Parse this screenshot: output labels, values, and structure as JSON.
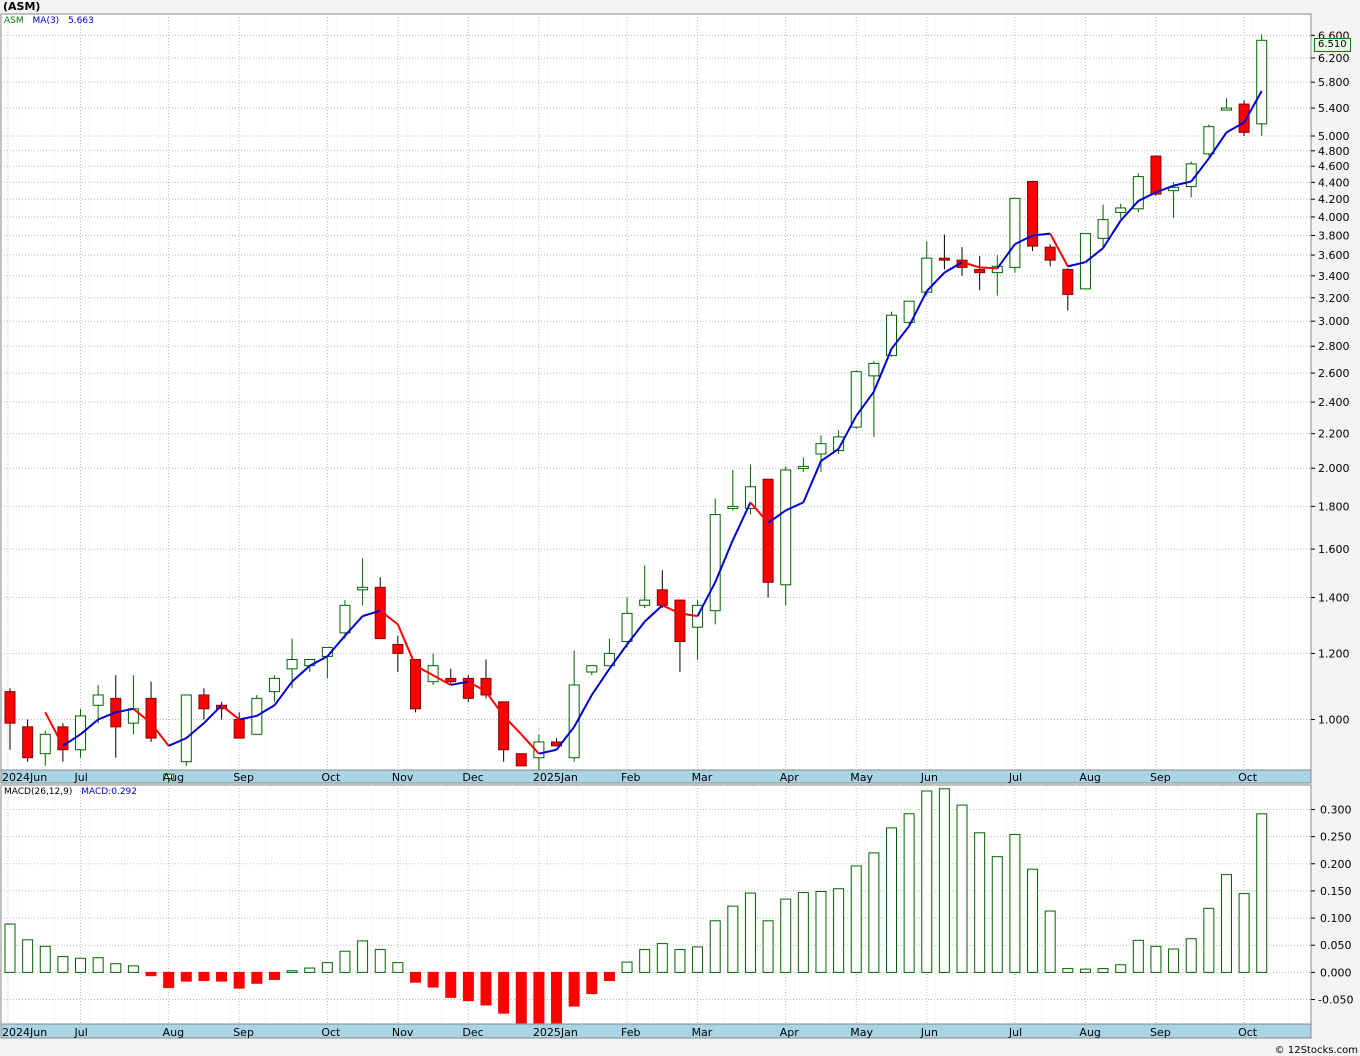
{
  "header": {
    "ticker": "(ASM)",
    "legend_symbol": "ASM",
    "legend_ma": "MA(3)",
    "legend_ma_value": "5.663",
    "macd_label": "MACD(26,12,9)",
    "macd_value": "MACD:0.292",
    "last_price": "6.510",
    "credit": "© 12Stocks.com"
  },
  "colors": {
    "up": "#006400",
    "down": "#ff0000",
    "ma_up": "#0000cc",
    "ma_down": "#ff0000",
    "macd_pos": "#006400",
    "macd_neg": "#ff0000",
    "axis_band": "#a8d4e6"
  },
  "chart_data": [
    {
      "type": "candlestick",
      "scale": "log",
      "ylim": [
        0.87,
        7.0
      ],
      "y_ticks": [
        "6.600",
        "6.200",
        "5.800",
        "5.400",
        "5.000",
        "4.800",
        "4.600",
        "4.400",
        "4.200",
        "4.000",
        "3.800",
        "3.600",
        "3.400",
        "3.200",
        "3.000",
        "2.800",
        "2.600",
        "2.400",
        "2.200",
        "2.000",
        "1.800",
        "1.600",
        "1.400",
        "1.200",
        "1.000"
      ],
      "x_month_labels": [
        "2024Jun",
        "Jul",
        "Aug",
        "Sep",
        "Oct",
        "Nov",
        "Dec",
        "2025Jan",
        "Feb",
        "Mar",
        "Apr",
        "May",
        "Jun",
        "Jul",
        "Aug",
        "Sep",
        "Oct"
      ],
      "candles": [
        {
          "o": 1.08,
          "h": 1.09,
          "l": 0.92,
          "c": 0.99
        },
        {
          "o": 0.98,
          "h": 1.0,
          "l": 0.89,
          "c": 0.9
        },
        {
          "o": 0.91,
          "h": 0.97,
          "l": 0.88,
          "c": 0.96
        },
        {
          "o": 0.98,
          "h": 0.99,
          "l": 0.89,
          "c": 0.92
        },
        {
          "o": 0.92,
          "h": 1.03,
          "l": 0.9,
          "c": 1.01
        },
        {
          "o": 1.04,
          "h": 1.1,
          "l": 0.99,
          "c": 1.07
        },
        {
          "o": 1.06,
          "h": 1.13,
          "l": 0.9,
          "c": 0.98
        },
        {
          "o": 0.99,
          "h": 1.13,
          "l": 0.96,
          "c": 1.03
        },
        {
          "o": 1.06,
          "h": 1.11,
          "l": 0.94,
          "c": 0.95
        },
        {
          "o": 0.85,
          "h": 0.86,
          "l": 0.84,
          "c": 0.86
        },
        {
          "o": 0.89,
          "h": 1.07,
          "l": 0.88,
          "c": 1.07
        },
        {
          "o": 1.07,
          "h": 1.09,
          "l": 1.0,
          "c": 1.03
        },
        {
          "o": 1.04,
          "h": 1.05,
          "l": 1.0,
          "c": 1.03
        },
        {
          "o": 1.0,
          "h": 1.02,
          "l": 0.95,
          "c": 0.95
        },
        {
          "o": 0.96,
          "h": 1.07,
          "l": 0.96,
          "c": 1.06
        },
        {
          "o": 1.08,
          "h": 1.13,
          "l": 1.05,
          "c": 1.12
        },
        {
          "o": 1.15,
          "h": 1.25,
          "l": 1.09,
          "c": 1.18
        },
        {
          "o": 1.16,
          "h": 1.18,
          "l": 1.14,
          "c": 1.18
        },
        {
          "o": 1.19,
          "h": 1.22,
          "l": 1.12,
          "c": 1.22
        },
        {
          "o": 1.27,
          "h": 1.39,
          "l": 1.25,
          "c": 1.37
        },
        {
          "o": 1.43,
          "h": 1.56,
          "l": 1.37,
          "c": 1.44
        },
        {
          "o": 1.44,
          "h": 1.48,
          "l": 1.25,
          "c": 1.25
        },
        {
          "o": 1.23,
          "h": 1.26,
          "l": 1.14,
          "c": 1.2
        },
        {
          "o": 1.18,
          "h": 1.18,
          "l": 1.02,
          "c": 1.03
        },
        {
          "o": 1.11,
          "h": 1.2,
          "l": 1.1,
          "c": 1.16
        },
        {
          "o": 1.12,
          "h": 1.15,
          "l": 1.1,
          "c": 1.11
        },
        {
          "o": 1.12,
          "h": 1.13,
          "l": 1.05,
          "c": 1.06
        },
        {
          "o": 1.12,
          "h": 1.18,
          "l": 1.06,
          "c": 1.07
        },
        {
          "o": 1.05,
          "h": 1.05,
          "l": 0.89,
          "c": 0.92
        },
        {
          "o": 0.91,
          "h": 0.91,
          "l": 0.88,
          "c": 0.88
        },
        {
          "o": 0.9,
          "h": 0.96,
          "l": 0.87,
          "c": 0.94
        },
        {
          "o": 0.94,
          "h": 0.95,
          "l": 0.94,
          "c": 0.93
        },
        {
          "o": 0.9,
          "h": 1.21,
          "l": 0.89,
          "c": 1.1
        },
        {
          "o": 1.14,
          "h": 1.16,
          "l": 1.13,
          "c": 1.16
        },
        {
          "o": 1.16,
          "h": 1.25,
          "l": 1.16,
          "c": 1.2
        },
        {
          "o": 1.24,
          "h": 1.4,
          "l": 1.22,
          "c": 1.34
        },
        {
          "o": 1.37,
          "h": 1.53,
          "l": 1.36,
          "c": 1.39
        },
        {
          "o": 1.43,
          "h": 1.51,
          "l": 1.36,
          "c": 1.37
        },
        {
          "o": 1.39,
          "h": 1.39,
          "l": 1.14,
          "c": 1.24
        },
        {
          "o": 1.29,
          "h": 1.39,
          "l": 1.18,
          "c": 1.37
        },
        {
          "o": 1.35,
          "h": 1.84,
          "l": 1.3,
          "c": 1.76
        },
        {
          "o": 1.79,
          "h": 1.99,
          "l": 1.78,
          "c": 1.8
        },
        {
          "o": 1.79,
          "h": 2.02,
          "l": 1.76,
          "c": 1.9
        },
        {
          "o": 1.94,
          "h": 1.94,
          "l": 1.4,
          "c": 1.46
        },
        {
          "o": 1.45,
          "h": 2.01,
          "l": 1.37,
          "c": 1.99
        },
        {
          "o": 2.01,
          "h": 2.06,
          "l": 1.98,
          "c": 2.01
        },
        {
          "o": 2.08,
          "h": 2.19,
          "l": 1.98,
          "c": 2.14
        },
        {
          "o": 2.1,
          "h": 2.22,
          "l": 2.08,
          "c": 2.18
        },
        {
          "o": 2.24,
          "h": 2.62,
          "l": 2.23,
          "c": 2.61
        },
        {
          "o": 2.58,
          "h": 2.69,
          "l": 2.18,
          "c": 2.67
        },
        {
          "o": 2.73,
          "h": 3.08,
          "l": 2.72,
          "c": 3.05
        },
        {
          "o": 2.99,
          "h": 3.17,
          "l": 2.98,
          "c": 3.17
        },
        {
          "o": 3.25,
          "h": 3.74,
          "l": 3.22,
          "c": 3.57
        },
        {
          "o": 3.57,
          "h": 3.81,
          "l": 3.46,
          "c": 3.55
        },
        {
          "o": 3.55,
          "h": 3.68,
          "l": 3.4,
          "c": 3.48
        },
        {
          "o": 3.46,
          "h": 3.59,
          "l": 3.27,
          "c": 3.43
        },
        {
          "o": 3.43,
          "h": 3.6,
          "l": 3.22,
          "c": 3.49
        },
        {
          "o": 3.48,
          "h": 4.2,
          "l": 3.43,
          "c": 4.21
        },
        {
          "o": 4.41,
          "h": 4.42,
          "l": 3.64,
          "c": 3.69
        },
        {
          "o": 3.68,
          "h": 3.71,
          "l": 3.49,
          "c": 3.55
        },
        {
          "o": 3.46,
          "h": 3.47,
          "l": 3.09,
          "c": 3.23
        },
        {
          "o": 3.28,
          "h": 3.82,
          "l": 3.28,
          "c": 3.82
        },
        {
          "o": 3.77,
          "h": 4.14,
          "l": 3.66,
          "c": 3.97
        },
        {
          "o": 4.05,
          "h": 4.15,
          "l": 3.98,
          "c": 4.1
        },
        {
          "o": 4.09,
          "h": 4.51,
          "l": 4.05,
          "c": 4.47
        },
        {
          "o": 4.73,
          "h": 4.74,
          "l": 4.24,
          "c": 4.26
        },
        {
          "o": 4.3,
          "h": 4.4,
          "l": 3.99,
          "c": 4.34
        },
        {
          "o": 4.35,
          "h": 4.66,
          "l": 4.22,
          "c": 4.63
        },
        {
          "o": 4.76,
          "h": 5.16,
          "l": 4.73,
          "c": 5.13
        },
        {
          "o": 5.4,
          "h": 5.55,
          "l": 5.38,
          "c": 5.4
        },
        {
          "o": 5.46,
          "h": 5.52,
          "l": 5.0,
          "c": 5.05
        },
        {
          "o": 5.17,
          "h": 6.62,
          "l": 5.0,
          "c": 6.51
        }
      ],
      "ma3": [
        null,
        null,
        1.02,
        0.93,
        0.96,
        1.0,
        1.02,
        1.03,
        0.99,
        0.93,
        0.95,
        0.99,
        1.04,
        1.0,
        1.01,
        1.04,
        1.11,
        1.16,
        1.19,
        1.26,
        1.33,
        1.35,
        1.3,
        1.16,
        1.13,
        1.1,
        1.11,
        1.08,
        1.01,
        0.96,
        0.91,
        0.92,
        0.98,
        1.07,
        1.15,
        1.23,
        1.31,
        1.37,
        1.34,
        1.33,
        1.46,
        1.64,
        1.82,
        1.72,
        1.78,
        1.82,
        2.04,
        2.11,
        2.31,
        2.47,
        2.78,
        2.96,
        3.26,
        3.43,
        3.53,
        3.48,
        3.47,
        3.71,
        3.8,
        3.82,
        3.49,
        3.53,
        3.67,
        3.96,
        4.18,
        4.28,
        4.36,
        4.41,
        4.7,
        5.05,
        5.19,
        5.66
      ]
    },
    {
      "type": "bar",
      "name": "MACD(26,12,9)",
      "ylim": [
        -0.095,
        0.345
      ],
      "y_ticks": [
        "0.300",
        "0.250",
        "0.200",
        "0.150",
        "0.100",
        "0.050",
        "0.000",
        "-0.050"
      ],
      "x_month_labels": [
        "2024Jun",
        "Jul",
        "Aug",
        "Sep",
        "Oct",
        "Nov",
        "Dec",
        "2025Jan",
        "Feb",
        "Mar",
        "Apr",
        "May",
        "Jun",
        "Jul",
        "Aug",
        "Sep",
        "Oct"
      ],
      "values": [
        0.089,
        0.06,
        0.048,
        0.029,
        0.026,
        0.027,
        0.016,
        0.012,
        -0.006,
        -0.028,
        -0.016,
        -0.015,
        -0.016,
        -0.029,
        -0.02,
        -0.013,
        0.003,
        0.008,
        0.018,
        0.039,
        0.058,
        0.042,
        0.018,
        -0.018,
        -0.027,
        -0.046,
        -0.052,
        -0.06,
        -0.075,
        -0.093,
        -0.093,
        -0.093,
        -0.062,
        -0.039,
        -0.015,
        0.019,
        0.042,
        0.053,
        0.042,
        0.047,
        0.095,
        0.122,
        0.146,
        0.095,
        0.135,
        0.147,
        0.149,
        0.154,
        0.196,
        0.22,
        0.266,
        0.292,
        0.334,
        0.338,
        0.308,
        0.257,
        0.213,
        0.254,
        0.19,
        0.113,
        0.007,
        0.006,
        0.007,
        0.014,
        0.059,
        0.048,
        0.043,
        0.062,
        0.118,
        0.18,
        0.145,
        0.292
      ]
    }
  ]
}
